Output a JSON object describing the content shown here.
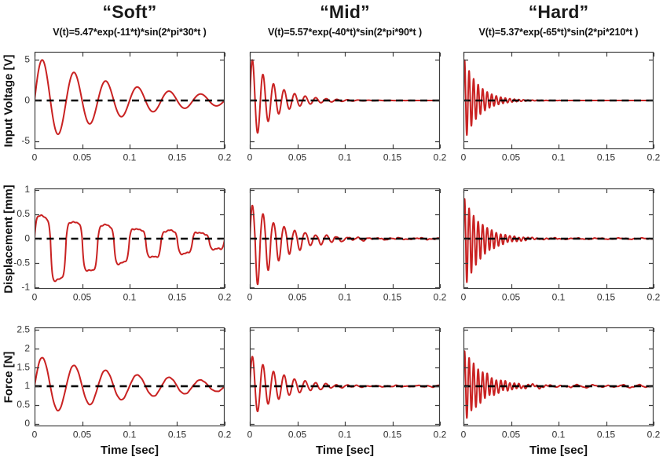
{
  "figure": {
    "columns": [
      {
        "title": "“Soft”",
        "formula": "V(t)=5.47*exp(-11*t)*sin(2*pi*30*t )"
      },
      {
        "title": "“Mid”",
        "formula": "V(t)=5.57*exp(-40*t)*sin(2*pi*90*t )"
      },
      {
        "title": "“Hard”",
        "formula": "V(t)=5.37*exp(-65*t)*sin(2*pi*210*t )"
      }
    ],
    "rows": [
      {
        "ylabel": "Input Voltage [V]"
      },
      {
        "ylabel": "Displacement [mm]"
      },
      {
        "ylabel": "Force [N]"
      }
    ],
    "xlabel": "Time [sec]"
  },
  "colors": {
    "signal": "#c92222",
    "baseline": "#000000",
    "axis": "#3f3f3f",
    "tick_text": "#333333"
  },
  "chart_data": [
    {
      "type": "line",
      "row": 0,
      "col": 0,
      "series_name": "input-voltage-soft",
      "x_range": [
        0,
        0.2
      ],
      "y_range": [
        -6,
        6
      ],
      "x_ticks": [
        0,
        0.05,
        0.1,
        0.15,
        0.2
      ],
      "x_tick_labels": [
        "0",
        "0.05",
        "0.1",
        "0.15",
        "0.2"
      ],
      "y_ticks": [
        -5,
        0,
        5
      ],
      "y_tick_labels": [
        "-5",
        "0",
        "5"
      ],
      "show_y_tick_labels": true,
      "baseline": 0,
      "signal": {
        "amplitude": 5.47,
        "decay": 11,
        "freq_hz": 30,
        "phase_deg": 0,
        "pos_scale": 1,
        "neg_scale": 1,
        "shape_k": 0,
        "noise": 0,
        "ripple": 0,
        "ripple_freq_hz": 0
      }
    },
    {
      "type": "line",
      "row": 0,
      "col": 1,
      "series_name": "input-voltage-mid",
      "x_range": [
        0,
        0.2
      ],
      "y_range": [
        -6,
        6
      ],
      "x_ticks": [
        0,
        0.05,
        0.1,
        0.15,
        0.2
      ],
      "x_tick_labels": [
        "0",
        "0.05",
        "0.1",
        "0.15",
        "0.2"
      ],
      "y_ticks": [
        -5,
        0,
        5
      ],
      "y_tick_labels": [
        "-5",
        "0",
        "5"
      ],
      "show_y_tick_labels": false,
      "baseline": 0,
      "signal": {
        "amplitude": 5.57,
        "decay": 40,
        "freq_hz": 90,
        "phase_deg": 0,
        "pos_scale": 1,
        "neg_scale": 1,
        "shape_k": 0,
        "noise": 0,
        "ripple": 0,
        "ripple_freq_hz": 0
      }
    },
    {
      "type": "line",
      "row": 0,
      "col": 2,
      "series_name": "input-voltage-hard",
      "x_range": [
        0,
        0.2
      ],
      "y_range": [
        -6,
        6
      ],
      "x_ticks": [
        0,
        0.05,
        0.1,
        0.15,
        0.2
      ],
      "x_tick_labels": [
        "0",
        "0.05",
        "0.1",
        "0.15",
        "0.2"
      ],
      "y_ticks": [
        -5,
        0,
        5
      ],
      "y_tick_labels": [
        "-5",
        "0",
        "5"
      ],
      "show_y_tick_labels": false,
      "baseline": 0,
      "signal": {
        "amplitude": 5.37,
        "decay": 65,
        "freq_hz": 210,
        "phase_deg": 0,
        "pos_scale": 1,
        "neg_scale": 1,
        "shape_k": 0,
        "noise": 0,
        "ripple": 0,
        "ripple_freq_hz": 0
      }
    },
    {
      "type": "line",
      "row": 1,
      "col": 0,
      "series_name": "displacement-soft",
      "x_range": [
        0,
        0.2
      ],
      "y_range": [
        -1.03,
        1.03
      ],
      "x_ticks": [
        0,
        0.05,
        0.1,
        0.15,
        0.2
      ],
      "x_tick_labels": [
        "0",
        "0.05",
        "0.1",
        "0.15",
        "0.2"
      ],
      "y_ticks": [
        -1,
        -0.5,
        0,
        0.5,
        1
      ],
      "y_tick_labels": [
        "-1",
        "-0.5",
        "0",
        "0.5",
        "1"
      ],
      "show_y_tick_labels": true,
      "baseline": 0,
      "signal": {
        "amplitude": 0.7,
        "decay": 8,
        "freq_hz": 30,
        "phase_deg": 0,
        "pos_scale": 0.69,
        "neg_scale": 1.48,
        "shape_k": 2.8,
        "noise": 0.016,
        "ripple": 0,
        "ripple_freq_hz": 0
      }
    },
    {
      "type": "line",
      "row": 1,
      "col": 1,
      "series_name": "displacement-mid",
      "x_range": [
        0,
        0.2
      ],
      "y_range": [
        -1.03,
        1.03
      ],
      "x_ticks": [
        0,
        0.05,
        0.1,
        0.15,
        0.2
      ],
      "x_tick_labels": [
        "0",
        "0.05",
        "0.1",
        "0.15",
        "0.2"
      ],
      "y_ticks": [
        -1,
        -0.5,
        0,
        0.5,
        1
      ],
      "y_tick_labels": [
        "-1",
        "-0.5",
        "0",
        "0.5",
        "1"
      ],
      "show_y_tick_labels": false,
      "baseline": 0,
      "signal": {
        "amplitude": 1.05,
        "decay": 32,
        "freq_hz": 90,
        "phase_deg": 0,
        "pos_scale": 0.72,
        "neg_scale": 1.15,
        "shape_k": 0,
        "noise": 0.012,
        "ripple": 0,
        "ripple_freq_hz": 0
      }
    },
    {
      "type": "line",
      "row": 1,
      "col": 2,
      "series_name": "displacement-hard",
      "x_range": [
        0,
        0.2
      ],
      "y_range": [
        -1.03,
        1.03
      ],
      "x_ticks": [
        0,
        0.05,
        0.1,
        0.15,
        0.2
      ],
      "x_tick_labels": [
        "0",
        "0.05",
        "0.1",
        "0.15",
        "0.2"
      ],
      "y_ticks": [
        -1,
        -0.5,
        0,
        0.5,
        1
      ],
      "y_tick_labels": [
        "-1",
        "-0.5",
        "0",
        "0.5",
        "1"
      ],
      "show_y_tick_labels": false,
      "baseline": 0,
      "signal": {
        "amplitude": 1.1,
        "decay": 55,
        "freq_hz": 210,
        "phase_deg": 0,
        "pos_scale": 0.78,
        "neg_scale": 1.0,
        "shape_k": 0,
        "noise": 0.009,
        "ripple": 0,
        "ripple_freq_hz": 0
      }
    },
    {
      "type": "line",
      "row": 2,
      "col": 0,
      "series_name": "force-soft",
      "x_range": [
        0,
        0.2
      ],
      "y_range": [
        -0.07,
        2.57
      ],
      "x_ticks": [
        0,
        0.05,
        0.1,
        0.15,
        0.2
      ],
      "x_tick_labels": [
        "0",
        "0.05",
        "0.1",
        "0.15",
        "0.2"
      ],
      "y_ticks": [
        0,
        0.5,
        1,
        1.5,
        2,
        2.5
      ],
      "y_tick_labels": [
        "0",
        "0.5",
        "1",
        "1.5",
        "2",
        "2.5"
      ],
      "show_y_tick_labels": true,
      "baseline": 1,
      "signal": {
        "amplitude": 0.82,
        "decay": 9,
        "freq_hz": 30,
        "phase_deg": 0,
        "pos_scale": 1,
        "neg_scale": 1,
        "shape_k": 0,
        "noise": 0.008,
        "ripple": 0,
        "ripple_freq_hz": 0
      }
    },
    {
      "type": "line",
      "row": 2,
      "col": 1,
      "series_name": "force-mid",
      "x_range": [
        0,
        0.2
      ],
      "y_range": [
        -0.07,
        2.57
      ],
      "x_ticks": [
        0,
        0.05,
        0.1,
        0.15,
        0.2
      ],
      "x_tick_labels": [
        "0",
        "0.05",
        "0.1",
        "0.15",
        "0.2"
      ],
      "y_ticks": [
        0,
        0.5,
        1,
        1.5,
        2,
        2.5
      ],
      "y_tick_labels": [
        "0",
        "0.5",
        "1",
        "1.5",
        "2",
        "2.5"
      ],
      "show_y_tick_labels": false,
      "baseline": 1,
      "signal": {
        "amplitude": 0.88,
        "decay": 30,
        "freq_hz": 90,
        "phase_deg": 0,
        "pos_scale": 1,
        "neg_scale": 1,
        "shape_k": 0,
        "noise": 0.009,
        "ripple": 0.018,
        "ripple_freq_hz": 90
      }
    },
    {
      "type": "line",
      "row": 2,
      "col": 2,
      "series_name": "force-hard",
      "x_range": [
        0,
        0.2
      ],
      "y_range": [
        -0.07,
        2.57
      ],
      "x_ticks": [
        0,
        0.05,
        0.1,
        0.15,
        0.2
      ],
      "x_tick_labels": [
        "0",
        "0.05",
        "0.1",
        "0.15",
        "0.2"
      ],
      "y_ticks": [
        0,
        0.5,
        1,
        1.5,
        2,
        2.5
      ],
      "y_tick_labels": [
        "0",
        "0.5",
        "1",
        "1.5",
        "2",
        "2.5"
      ],
      "show_y_tick_labels": false,
      "baseline": 1,
      "signal": {
        "amplitude": 1.0,
        "decay": 48,
        "freq_hz": 210,
        "phase_deg": 0,
        "pos_scale": 1,
        "neg_scale": 1,
        "shape_k": 0,
        "noise": 0.013,
        "ripple": 0.025,
        "ripple_freq_hz": 63
      }
    }
  ]
}
